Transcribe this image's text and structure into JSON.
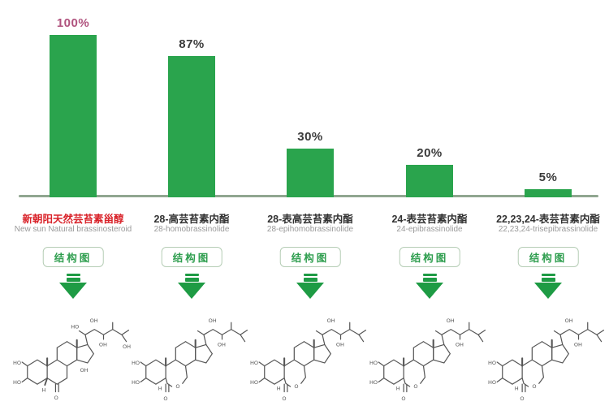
{
  "chart_data": {
    "type": "bar",
    "categories": [
      "新朝阳天然芸苔素甾醇",
      "28-高芸苔素内酯",
      "28-表高芸苔素内酯",
      "24-表芸苔素内酯",
      "22,23,24-表芸苔素内酯"
    ],
    "categories_en": [
      "New sun Natural brassinosteroid",
      "28-homobrassinolide",
      "28-epihomobrassinolide",
      "24-epibrassinolide",
      "22,23,24-trisepibrassinolide"
    ],
    "values": [
      100,
      87,
      30,
      20,
      5
    ],
    "value_labels": [
      "100%",
      "87%",
      "30%",
      "20%",
      "5%"
    ],
    "title": "",
    "xlabel": "",
    "ylabel": "",
    "ylim": [
      0,
      100
    ],
    "grid": false,
    "legend": "none",
    "bar_color": "#2aa44d",
    "baseline_color": "#90a690",
    "highlighted_bar_index": 0
  },
  "columns": [
    {
      "pct": "100%",
      "name_cn": "新朝阳天然芸苔素甾醇",
      "name_en": "New sun Natural brassinosteroid",
      "highlight": true
    },
    {
      "pct": "87%",
      "name_cn": "28-高芸苔素内酯",
      "name_en": "28-homobrassinolide",
      "highlight": false
    },
    {
      "pct": "30%",
      "name_cn": "28-表高芸苔素内酯",
      "name_en": "28-epihomobrassinolide",
      "highlight": false
    },
    {
      "pct": "20%",
      "name_cn": "24-表芸苔素内酯",
      "name_en": "24-epibrassinolide",
      "highlight": false
    },
    {
      "pct": "5%",
      "name_cn": "22,23,24-表芸苔素内酯",
      "name_en": "22,23,24-trisepibrassinolide",
      "highlight": false
    }
  ],
  "labels": {
    "structure_button": "结构图"
  },
  "structure_labels": {
    "ho": "HO",
    "oh": "OH",
    "o": "O",
    "h": "H"
  },
  "colors": {
    "bar_green": "#2aa44d",
    "arrow_green": "#1e9b44",
    "button_green": "#2f9e4f",
    "button_border": "#b5cdb5",
    "baseline": "#90a690",
    "highlight_value": "#b0537e",
    "highlight_category": "#d9232a",
    "text_dark": "#3a3a3a",
    "text_gray": "#999999",
    "structure_ink": "#555555"
  }
}
